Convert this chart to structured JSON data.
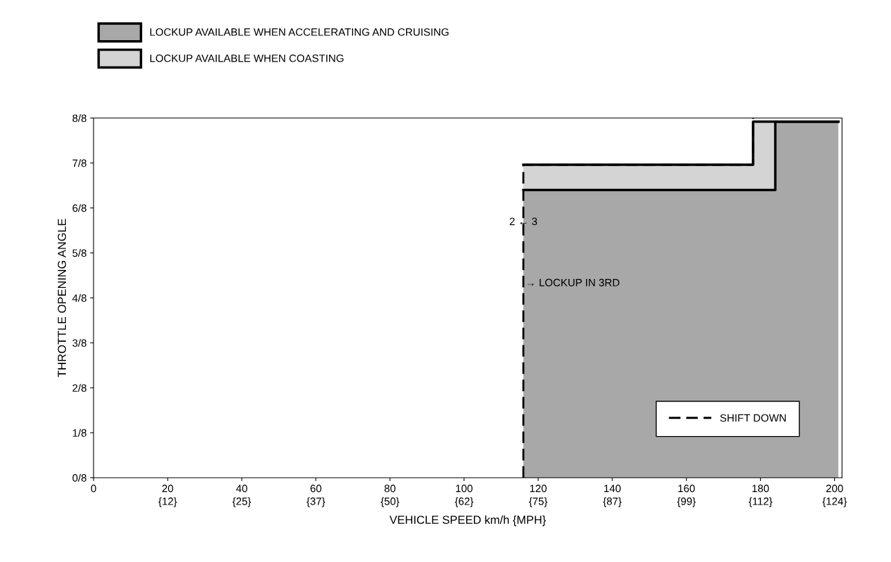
{
  "chart_data": {
    "type": "area",
    "xlabel": "VEHICLE SPEED km/h {MPH}",
    "ylabel": "THROTTLE OPENING ANGLE",
    "xlim": [
      0,
      202
    ],
    "ylim": [
      0,
      1
    ],
    "xticks": [
      0,
      20,
      40,
      60,
      80,
      100,
      120,
      140,
      160,
      180,
      200
    ],
    "x2lim": [
      0,
      125.5
    ],
    "x2ticks": [
      {
        "value": 12.43,
        "label": "{12}"
      },
      {
        "value": 24.85,
        "label": "{25}"
      },
      {
        "value": 37.28,
        "label": "{37}"
      },
      {
        "value": 49.71,
        "label": "{50}"
      },
      {
        "value": 62.14,
        "label": "{62}"
      },
      {
        "value": 74.56,
        "label": "{75}"
      },
      {
        "value": 86.99,
        "label": "{87}"
      },
      {
        "value": 99.42,
        "label": "{99}"
      },
      {
        "value": 111.85,
        "label": "{112}"
      },
      {
        "value": 124.27,
        "label": "{124}"
      }
    ],
    "yticks": [
      {
        "value": 0,
        "label": "0/8"
      },
      {
        "value": 0.125,
        "label": "1/8"
      },
      {
        "value": 0.25,
        "label": "2/8"
      },
      {
        "value": 0.375,
        "label": "3/8"
      },
      {
        "value": 0.5,
        "label": "4/8"
      },
      {
        "value": 0.625,
        "label": "5/8"
      },
      {
        "value": 0.75,
        "label": "6/8"
      },
      {
        "value": 0.875,
        "label": "7/8"
      },
      {
        "value": 1,
        "label": "8/8"
      }
    ],
    "stacked": true,
    "series": [
      {
        "name": "LOCKUP AVAILABLE WHEN ACCELERATING AND CRUISING",
        "color": "#a8a8a8",
        "x": [
          116,
          178,
          178,
          184,
          184,
          201
        ],
        "values": [
          0.8,
          0.8,
          0.8,
          0.8,
          0.99,
          0.99
        ]
      },
      {
        "name": "LOCKUP AVAILABLE WHEN COASTING",
        "color": "#d4d4d4",
        "x": [
          116,
          178,
          178,
          184,
          184,
          201
        ],
        "values": [
          0.07,
          0.07,
          0.19,
          0.19,
          0,
          0
        ]
      },
      {
        "name": "SHIFT DOWN",
        "type": "line",
        "line_style": "dashed",
        "color": "#000000",
        "x": [
          116,
          116,
          178,
          178
        ],
        "values": [
          0,
          0.87,
          0.87,
          1
        ]
      }
    ],
    "annotations": [
      {
        "text": "2 ← 3",
        "x": 116,
        "y": 0.71
      },
      {
        "text": "→ LOCKUP IN 3RD",
        "x": 116,
        "y": 0.54
      }
    ],
    "legend": "top left",
    "grid": false
  }
}
